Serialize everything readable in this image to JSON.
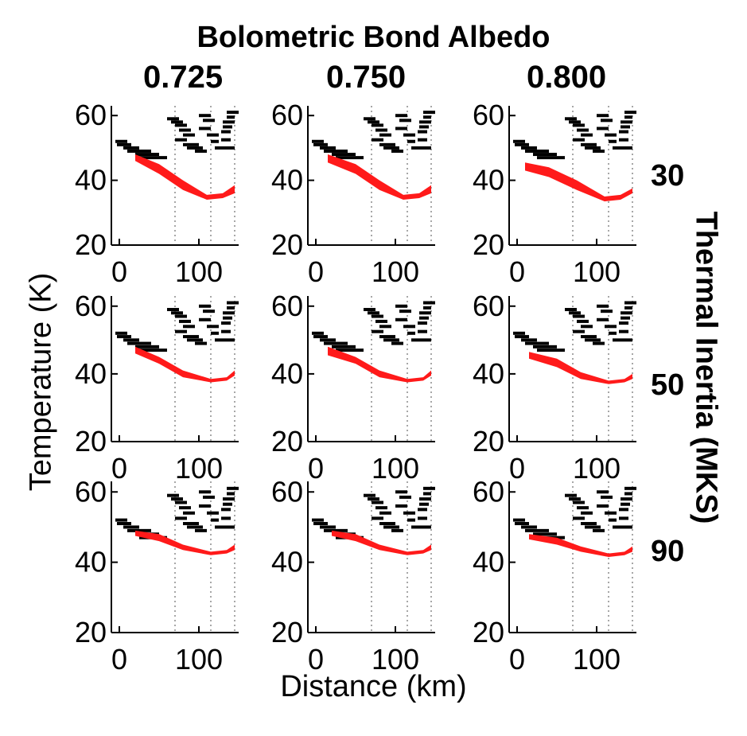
{
  "figure": {
    "title": "Bolometric Bond Albedo",
    "ylabel": "Temperature (K)",
    "xlabel": "Distance (km)",
    "side_label": "Thermal Inertia (MKS)",
    "albedo_columns": [
      "0.725",
      "0.750",
      "0.800"
    ],
    "inertia_rows": [
      "30",
      "50",
      "90"
    ]
  },
  "colors": {
    "model": "#ff1a1a",
    "observations": "#000000",
    "grid": "#8a8a8a"
  },
  "chart_data": {
    "type": "grid-of-band-plots",
    "xlim": [
      -10,
      150
    ],
    "ylim": [
      20,
      63
    ],
    "xticks": [
      "0",
      "100"
    ],
    "yticks": [
      "20",
      "40",
      "60"
    ],
    "grid": "vertical dotted lines at x ≈ 70, 115, 145",
    "observation_bars": [
      [
        -5,
        10,
        52
      ],
      [
        -3,
        15,
        51
      ],
      [
        5,
        25,
        50
      ],
      [
        10,
        40,
        49
      ],
      [
        20,
        50,
        48
      ],
      [
        25,
        60,
        47
      ],
      [
        60,
        75,
        59
      ],
      [
        65,
        80,
        58
      ],
      [
        70,
        85,
        57
      ],
      [
        75,
        90,
        55.5
      ],
      [
        80,
        95,
        54
      ],
      [
        70,
        85,
        52.5
      ],
      [
        80,
        100,
        51
      ],
      [
        85,
        105,
        50
      ],
      [
        95,
        110,
        49
      ],
      [
        100,
        115,
        60
      ],
      [
        105,
        120,
        58.5
      ],
      [
        100,
        115,
        56
      ],
      [
        110,
        125,
        54
      ],
      [
        115,
        125,
        52
      ],
      [
        120,
        130,
        50
      ],
      [
        135,
        150,
        61
      ],
      [
        135,
        145,
        59.5
      ],
      [
        130,
        145,
        58
      ],
      [
        130,
        142,
        56.5
      ],
      [
        128,
        140,
        55
      ],
      [
        128,
        140,
        52.5
      ],
      [
        130,
        145,
        50
      ]
    ],
    "panels": [
      {
        "albedo": "0.725",
        "inertia": "30",
        "red_band": {
          "x": [
            20,
            50,
            80,
            110,
            130,
            145
          ],
          "lower": [
            46,
            42,
            37,
            34,
            34.5,
            36
          ],
          "upper": [
            48,
            45,
            40,
            35.5,
            36,
            38.5
          ]
        }
      },
      {
        "albedo": "0.750",
        "inertia": "30",
        "red_band": {
          "x": [
            15,
            50,
            80,
            110,
            130,
            145
          ],
          "lower": [
            45.5,
            42,
            37,
            34,
            34.5,
            36
          ],
          "upper": [
            48,
            45,
            40,
            35.5,
            36,
            38.5
          ]
        }
      },
      {
        "albedo": "0.800",
        "inertia": "30",
        "red_band": {
          "x": [
            10,
            40,
            75,
            110,
            130,
            145
          ],
          "lower": [
            43,
            41,
            37,
            33.5,
            34,
            36
          ],
          "upper": [
            45.5,
            44,
            40,
            35,
            35.5,
            37.5
          ]
        }
      },
      {
        "albedo": "0.725",
        "inertia": "50",
        "red_band": {
          "x": [
            20,
            50,
            80,
            115,
            135,
            145
          ],
          "lower": [
            46,
            43,
            39,
            37.5,
            38,
            39.5
          ],
          "upper": [
            48,
            45,
            41,
            38.5,
            39,
            41
          ]
        }
      },
      {
        "albedo": "0.750",
        "inertia": "50",
        "red_band": {
          "x": [
            15,
            50,
            80,
            115,
            135,
            145
          ],
          "lower": [
            45.5,
            43,
            39,
            37.5,
            38,
            39.5
          ],
          "upper": [
            48,
            45,
            41,
            38.5,
            39,
            41
          ]
        }
      },
      {
        "albedo": "0.800",
        "inertia": "50",
        "red_band": {
          "x": [
            15,
            50,
            80,
            115,
            135,
            145
          ],
          "lower": [
            44.5,
            42,
            38.5,
            37,
            37.5,
            38.5
          ],
          "upper": [
            46.5,
            44.5,
            40.5,
            38,
            38.5,
            40
          ]
        }
      },
      {
        "albedo": "0.725",
        "inertia": "90",
        "red_band": {
          "x": [
            20,
            50,
            80,
            115,
            135,
            145
          ],
          "lower": [
            47.5,
            46,
            43.5,
            42,
            42.5,
            43.5
          ],
          "upper": [
            49,
            48,
            45,
            43,
            43.5,
            45
          ]
        }
      },
      {
        "albedo": "0.750",
        "inertia": "90",
        "red_band": {
          "x": [
            20,
            50,
            80,
            115,
            135,
            145
          ],
          "lower": [
            47.5,
            46,
            43.5,
            42,
            42.5,
            43.5
          ],
          "upper": [
            49,
            48,
            45,
            43,
            43.5,
            45
          ]
        }
      },
      {
        "albedo": "0.800",
        "inertia": "90",
        "red_band": {
          "x": [
            15,
            50,
            80,
            115,
            135,
            145
          ],
          "lower": [
            46.5,
            45,
            43,
            41.5,
            42,
            43
          ],
          "upper": [
            48,
            47,
            44.5,
            42.5,
            43,
            44.5
          ]
        }
      }
    ]
  }
}
